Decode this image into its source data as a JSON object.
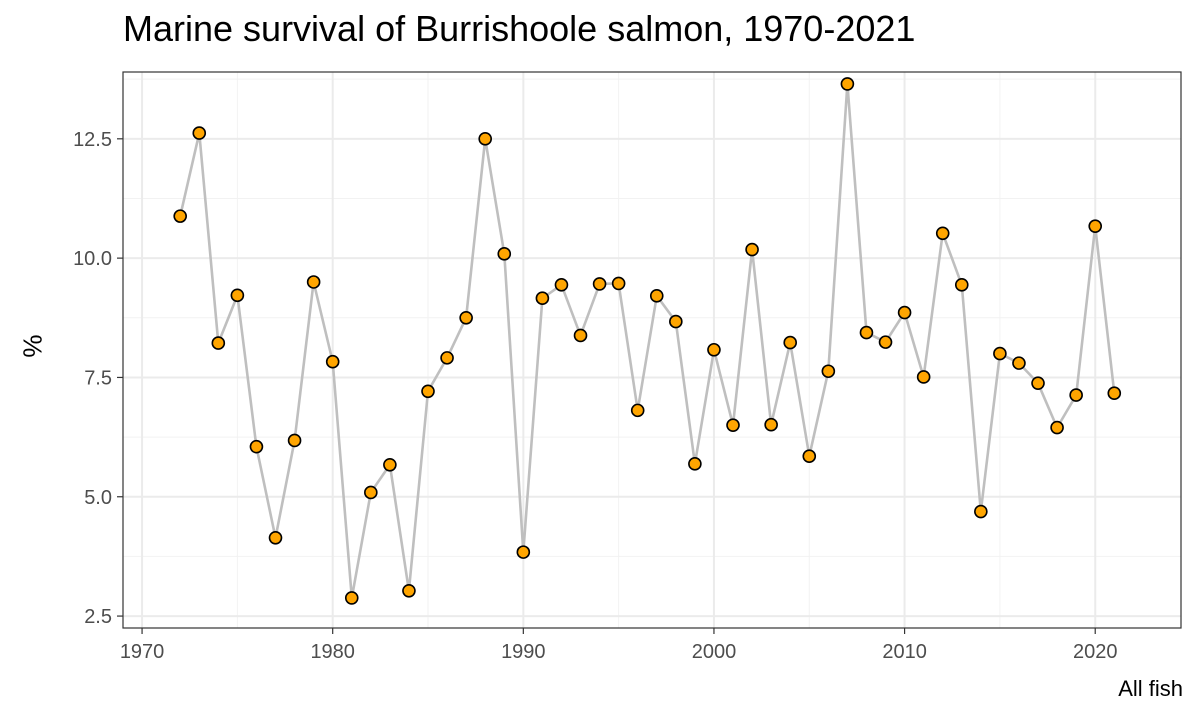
{
  "chart_data": {
    "type": "line",
    "title": "Marine survival of Burrishoole salmon, 1970-2021",
    "xlabel": "",
    "ylabel": "%",
    "caption": "All fish",
    "xlim": [
      1969,
      2024.5
    ],
    "ylim": [
      2.25,
      13.9
    ],
    "x_ticks": [
      1970,
      1980,
      1990,
      2000,
      2010,
      2020
    ],
    "y_ticks": [
      2.5,
      5.0,
      7.5,
      10.0,
      12.5
    ],
    "y_tick_labels": [
      "2.5",
      "5.0",
      "7.5",
      "10.0",
      "12.5"
    ],
    "grid": true,
    "line_color": "#bfbfbf",
    "point_fill": "#ffa500",
    "point_stroke": "#000000",
    "series": [
      {
        "x": [
          1972,
          1973,
          1974,
          1975,
          1976,
          1977,
          1978,
          1979,
          1980,
          1981,
          1982,
          1983,
          1984,
          1985,
          1986,
          1987,
          1988,
          1989,
          1990,
          1991,
          1992,
          1993,
          1994,
          1995,
          1996,
          1997,
          1998,
          1999,
          2000,
          2001,
          2002,
          2003,
          2004,
          2005,
          2006,
          2007,
          2008,
          2009,
          2010,
          2011,
          2012,
          2013,
          2014,
          2015,
          2016,
          2017,
          2018,
          2019,
          2020,
          2021
        ],
        "values": [
          10.88,
          12.62,
          8.22,
          9.22,
          6.05,
          4.14,
          6.18,
          9.5,
          7.83,
          2.88,
          5.09,
          5.67,
          3.03,
          7.21,
          7.91,
          8.75,
          12.5,
          10.09,
          3.84,
          9.16,
          9.44,
          8.38,
          9.46,
          9.47,
          6.81,
          9.21,
          8.67,
          5.69,
          8.08,
          6.5,
          10.18,
          6.51,
          8.23,
          5.85,
          7.63,
          13.65,
          8.44,
          8.24,
          8.86,
          7.51,
          10.52,
          9.44,
          4.69,
          8.0,
          7.8,
          7.38,
          6.45,
          7.13,
          10.67,
          7.17
        ]
      }
    ]
  }
}
